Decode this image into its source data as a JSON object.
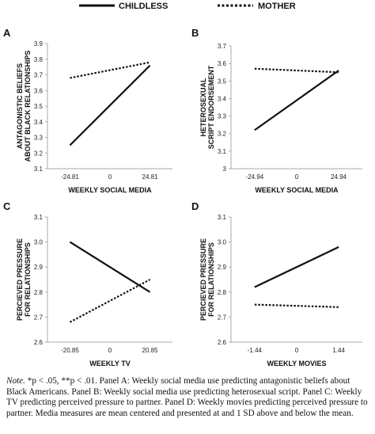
{
  "legend": [
    {
      "name": "CHILDLESS",
      "style": "solid"
    },
    {
      "name": "MOTHER",
      "style": "dotted"
    }
  ],
  "colors": {
    "line": "#111111",
    "axis": "#aaaaaa"
  },
  "note": {
    "lead": "Note.",
    "sig": "*p < .05, **p < .01.",
    "body": "Panel A: Weekly social media use predicting antagonistic beliefs about Black Americans. Panel B: Weekly social media use predicting heterosexual script. Panel C: Weekly TV predicting perceived pressure to partner.  Panel D: Weekly movies predicting perceived  pressure to partner. Media measures are mean centered and presented at and 1 SD above and below the mean."
  },
  "chart_data": [
    {
      "panel": "A",
      "type": "line",
      "xlabel": "WEEKLY SOCIAL MEDIA",
      "ylabel": "ANTAGONISTIC BELIEFS ABOUT BLACK RELATIONSHIPS",
      "xticks": [
        "-24.81",
        "0",
        "24.81"
      ],
      "x": [
        -24.81,
        24.81
      ],
      "ylim": [
        3.1,
        3.9
      ],
      "yticks": [
        "3.1",
        "3.2",
        "3.3",
        "3.4",
        "3.5",
        "3.6",
        "3.7",
        "3.8",
        "3.9"
      ],
      "ytick_values": [
        3.1,
        3.2,
        3.3,
        3.4,
        3.5,
        3.6,
        3.7,
        3.8,
        3.9
      ],
      "series": [
        {
          "name": "CHILDLESS",
          "values": [
            3.25,
            3.76
          ]
        },
        {
          "name": "MOTHER",
          "values": [
            3.68,
            3.78
          ]
        }
      ]
    },
    {
      "panel": "B",
      "type": "line",
      "xlabel": "WEEKLY SOCIAL MEDIA",
      "ylabel": "HETEROSEXUAL SCRIPT ENDORSEMENT",
      "xticks": [
        "-24.94",
        "0",
        "24.94"
      ],
      "x": [
        -24.94,
        24.94
      ],
      "ylim": [
        3.0,
        3.7
      ],
      "yticks": [
        "3",
        "3.1",
        "3.2",
        "3.3",
        "3.4",
        "3.5",
        "3.6",
        "3.7"
      ],
      "ytick_values": [
        3.0,
        3.1,
        3.2,
        3.3,
        3.4,
        3.5,
        3.6,
        3.7
      ],
      "series": [
        {
          "name": "CHILDLESS",
          "values": [
            3.22,
            3.56
          ]
        },
        {
          "name": "MOTHER",
          "values": [
            3.57,
            3.55
          ]
        }
      ]
    },
    {
      "panel": "C",
      "type": "line",
      "xlabel": "WEEKLY TV",
      "ylabel": "PERCIEVED PRESSURE FOR RELATIONSHIPS",
      "xticks": [
        "-20.85",
        "0",
        "20.85"
      ],
      "x": [
        -20.85,
        20.85
      ],
      "ylim": [
        2.6,
        3.1
      ],
      "yticks": [
        "2.6",
        "2.7",
        "2.8",
        "2.9",
        "3.0",
        "3.1"
      ],
      "ytick_values": [
        2.6,
        2.7,
        2.8,
        2.9,
        3.0,
        3.1
      ],
      "series": [
        {
          "name": "CHILDLESS",
          "values": [
            3.0,
            2.8
          ]
        },
        {
          "name": "MOTHER",
          "values": [
            2.68,
            2.85
          ]
        }
      ]
    },
    {
      "panel": "D",
      "type": "line",
      "xlabel": "WEEKLY MOVIES",
      "ylabel": "PERCIEVED PRESSURE FOR RELATIONSHIPS",
      "xticks": [
        "-1.44",
        "0",
        "1.44"
      ],
      "x": [
        -1.44,
        1.44
      ],
      "ylim": [
        2.6,
        3.1
      ],
      "yticks": [
        "2.6",
        "2.7",
        "2.8",
        "2.9",
        "3.0",
        "3.1"
      ],
      "ytick_values": [
        2.6,
        2.7,
        2.8,
        2.9,
        3.0,
        3.1
      ],
      "series": [
        {
          "name": "CHILDLESS",
          "values": [
            2.82,
            2.98
          ]
        },
        {
          "name": "MOTHER",
          "values": [
            2.75,
            2.74
          ]
        }
      ]
    }
  ]
}
